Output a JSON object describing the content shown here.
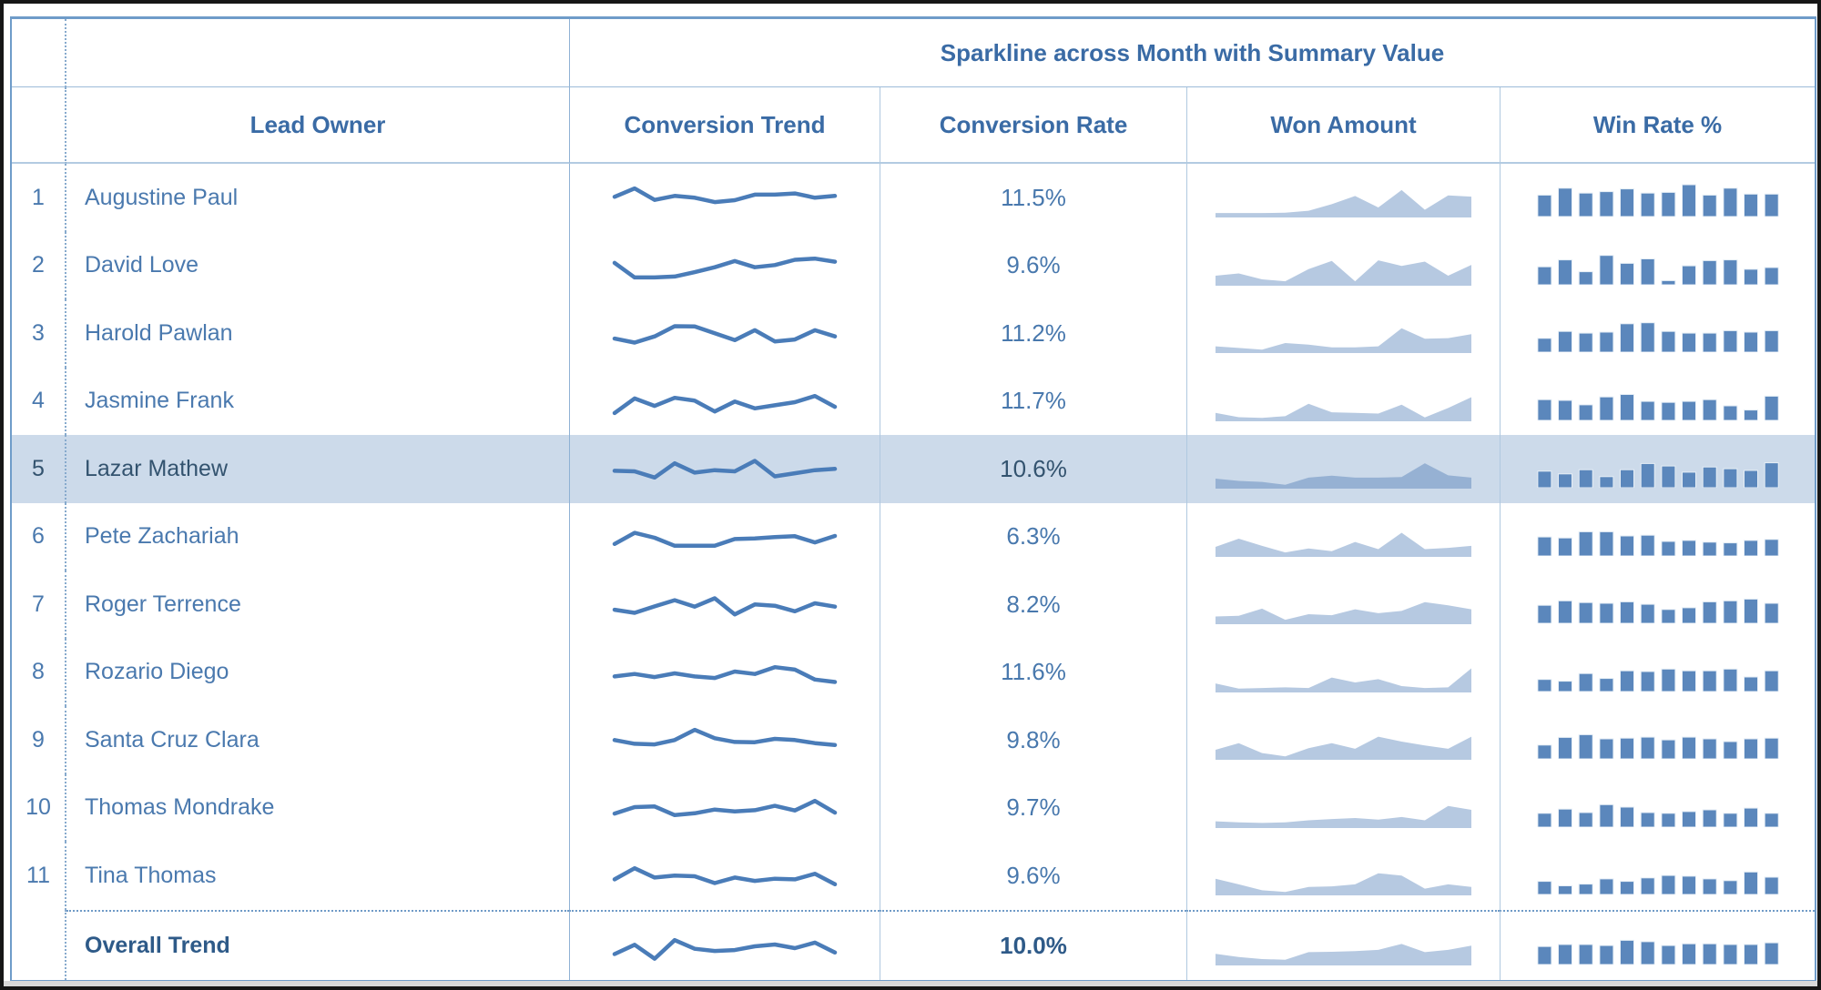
{
  "chart_data": {
    "type": "table",
    "title": "Sparkline across Month with Summary Value",
    "columns": [
      "Lead Owner",
      "Conversion Trend",
      "Conversion Rate",
      "Won Amount",
      "Win Rate %"
    ],
    "sparkline_x_dimension": "Month",
    "points_per_sparkline": 12,
    "sparkline_value_scale": "relative 0-100, estimated from pixels (no axes shown)",
    "selected_row": "Lazar Mathew",
    "rows": [
      {
        "index": "1",
        "lead_owner": "Augustine Paul",
        "conversion_rate": "11.5%",
        "highlighted": false,
        "conversion_trend": [
          55,
          82,
          45,
          58,
          52,
          38,
          44,
          62,
          62,
          66,
          52,
          58
        ],
        "won_amount_trend": [
          8,
          8,
          8,
          9,
          15,
          35,
          60,
          25,
          78,
          18,
          62,
          58
        ],
        "win_rate_trend": [
          62,
          82,
          68,
          72,
          80,
          68,
          70,
          92,
          62,
          82,
          65,
          65
        ]
      },
      {
        "index": "2",
        "lead_owner": "David Love",
        "conversion_rate": "9.6%",
        "highlighted": false,
        "conversion_trend": [
          62,
          15,
          15,
          18,
          32,
          48,
          68,
          48,
          55,
          72,
          76,
          66
        ],
        "won_amount_trend": [
          25,
          32,
          14,
          8,
          45,
          70,
          8,
          72,
          55,
          68,
          25,
          58
        ],
        "win_rate_trend": [
          52,
          72,
          38,
          85,
          62,
          75,
          12,
          55,
          70,
          72,
          45,
          50
        ]
      },
      {
        "index": "3",
        "lead_owner": "Harold Pawlan",
        "conversion_rate": "11.2%",
        "highlighted": false,
        "conversion_trend": [
          35,
          22,
          42,
          75,
          74,
          52,
          30,
          62,
          26,
          32,
          62,
          42
        ],
        "won_amount_trend": [
          15,
          10,
          5,
          25,
          20,
          12,
          12,
          15,
          70,
          38,
          40,
          52
        ],
        "win_rate_trend": [
          40,
          60,
          55,
          58,
          82,
          85,
          60,
          55,
          55,
          62,
          58,
          62
        ]
      },
      {
        "index": "4",
        "lead_owner": "Jasmine Frank",
        "conversion_rate": "11.7%",
        "highlighted": false,
        "conversion_trend": [
          15,
          62,
          38,
          64,
          55,
          20,
          52,
          30,
          40,
          50,
          70,
          35
        ],
        "won_amount_trend": [
          20,
          7,
          5,
          10,
          48,
          22,
          20,
          18,
          45,
          6,
          35,
          68
        ],
        "win_rate_trend": [
          60,
          58,
          45,
          68,
          75,
          55,
          52,
          55,
          60,
          42,
          30,
          70
        ]
      },
      {
        "index": "5",
        "lead_owner": "Lazar Mathew",
        "conversion_rate": "10.6%",
        "highlighted": true,
        "conversion_trend": [
          46,
          44,
          24,
          70,
          40,
          48,
          44,
          78,
          28,
          38,
          48,
          52
        ],
        "won_amount_trend": [
          25,
          18,
          15,
          6,
          28,
          34,
          28,
          28,
          30,
          72,
          35,
          28
        ],
        "win_rate_trend": [
          48,
          40,
          52,
          32,
          52,
          70,
          63,
          45,
          60,
          55,
          50,
          72
        ]
      },
      {
        "index": "6",
        "lead_owner": "Pete Zachariah",
        "conversion_rate": "6.3%",
        "highlighted": false,
        "conversion_trend": [
          30,
          66,
          50,
          24,
          24,
          24,
          46,
          48,
          52,
          55,
          35,
          56
        ],
        "won_amount_trend": [
          25,
          50,
          28,
          8,
          20,
          12,
          40,
          18,
          68,
          18,
          22,
          28
        ],
        "win_rate_trend": [
          55,
          52,
          70,
          70,
          58,
          60,
          42,
          45,
          40,
          38,
          45,
          48
        ]
      },
      {
        "index": "7",
        "lead_owner": "Roger Terrence",
        "conversion_rate": "8.2%",
        "highlighted": false,
        "conversion_trend": [
          35,
          25,
          46,
          66,
          45,
          72,
          20,
          52,
          48,
          30,
          56,
          45
        ],
        "won_amount_trend": [
          18,
          20,
          42,
          8,
          25,
          22,
          40,
          28,
          35,
          62,
          52,
          40
        ],
        "win_rate_trend": [
          52,
          65,
          60,
          58,
          62,
          55,
          40,
          45,
          62,
          65,
          70,
          58
        ]
      },
      {
        "index": "8",
        "lead_owner": "Rozario Diego",
        "conversion_rate": "11.6%",
        "highlighted": false,
        "conversion_trend": [
          40,
          48,
          38,
          50,
          40,
          35,
          56,
          48,
          70,
          62,
          30,
          22
        ],
        "won_amount_trend": [
          22,
          6,
          8,
          10,
          8,
          40,
          25,
          35,
          14,
          8,
          10,
          68
        ],
        "win_rate_trend": [
          35,
          30,
          52,
          38,
          60,
          58,
          65,
          60,
          60,
          65,
          42,
          60
        ]
      },
      {
        "index": "9",
        "lead_owner": "Santa Cruz Clara",
        "conversion_rate": "9.8%",
        "highlighted": false,
        "conversion_trend": [
          52,
          40,
          38,
          52,
          85,
          58,
          46,
          45,
          56,
          52,
          42,
          36
        ],
        "won_amount_trend": [
          25,
          45,
          15,
          5,
          30,
          45,
          28,
          65,
          50,
          38,
          28,
          65
        ],
        "win_rate_trend": [
          40,
          62,
          70,
          58,
          60,
          63,
          55,
          63,
          58,
          50,
          58,
          60
        ]
      },
      {
        "index": "10",
        "lead_owner": "Thomas Mondrake",
        "conversion_rate": "9.7%",
        "highlighted": false,
        "conversion_trend": [
          35,
          56,
          58,
          30,
          36,
          48,
          42,
          46,
          60,
          45,
          76,
          38
        ],
        "won_amount_trend": [
          15,
          12,
          10,
          12,
          18,
          22,
          25,
          20,
          28,
          18,
          62,
          50
        ],
        "win_rate_trend": [
          40,
          52,
          42,
          65,
          58,
          42,
          40,
          45,
          50,
          40,
          55,
          40
        ]
      },
      {
        "index": "11",
        "lead_owner": "Tina Thomas",
        "conversion_rate": "9.6%",
        "highlighted": false,
        "conversion_trend": [
          40,
          76,
          46,
          52,
          50,
          28,
          46,
          35,
          42,
          40,
          58,
          24
        ],
        "won_amount_trend": [
          45,
          28,
          10,
          5,
          20,
          22,
          28,
          62,
          55,
          15,
          28,
          20
        ],
        "win_rate_trend": [
          38,
          25,
          30,
          45,
          38,
          48,
          55,
          53,
          45,
          40,
          65,
          50
        ]
      }
    ],
    "summary_row": {
      "label": "Overall Trend",
      "conversion_rate": "10.0%",
      "conversion_trend": [
        25,
        55,
        10,
        70,
        42,
        35,
        38,
        50,
        56,
        44,
        62,
        30
      ],
      "won_amount_trend": [
        30,
        20,
        14,
        12,
        35,
        36,
        38,
        42,
        60,
        35,
        42,
        55
      ],
      "win_rate_trend": [
        52,
        58,
        58,
        55,
        70,
        66,
        55,
        60,
        60,
        58,
        58,
        63
      ]
    }
  },
  "colors": {
    "line": "#4a7cb8",
    "area": "#b6c9e1",
    "area_selected": "#96b1d3",
    "bar": "#5b87bc",
    "bar_outline": "#e6eef6",
    "highlight_bg": "#ccdaea",
    "header_text": "#3a6ba5",
    "body_text": "#4a79ae"
  }
}
